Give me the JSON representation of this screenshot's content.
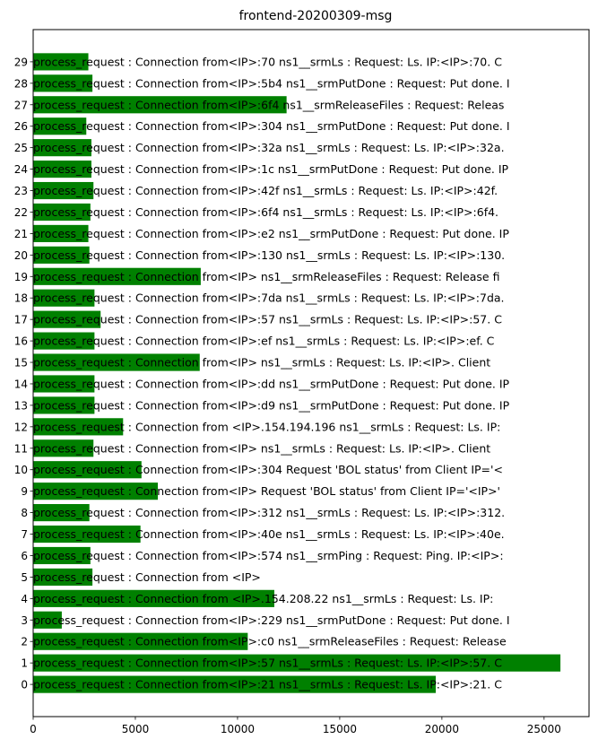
{
  "chart_data": {
    "type": "bar",
    "orientation": "horizontal",
    "title": "frontend-20200309-msg",
    "xlabel": "",
    "ylabel": "",
    "xlim": [
      0,
      27200
    ],
    "ylim": [
      -1.5,
      30.5
    ],
    "xticks": [
      0,
      5000,
      10000,
      15000,
      20000,
      25000
    ],
    "xtick_labels": [
      "0",
      "5000",
      "10000",
      "15000",
      "20000",
      "25000"
    ],
    "grid": false,
    "bar_color": "#008000",
    "categories": [
      "0",
      "1",
      "2",
      "3",
      "4",
      "5",
      "6",
      "7",
      "8",
      "9",
      "10",
      "11",
      "12",
      "13",
      "14",
      "15",
      "16",
      "17",
      "18",
      "19",
      "20",
      "21",
      "22",
      "23",
      "24",
      "25",
      "26",
      "27",
      "28",
      "29"
    ],
    "values": [
      19700,
      25800,
      10500,
      1400,
      11800,
      2900,
      2800,
      5250,
      2750,
      6100,
      5300,
      2950,
      4400,
      3000,
      3000,
      8150,
      3000,
      3300,
      3000,
      8200,
      2750,
      2700,
      2800,
      2950,
      2850,
      2850,
      2600,
      12400,
      2900,
      2700
    ],
    "labels": [
      "process_request : Connection from<IP>:21 ns1__srmLs : Request: Ls. IP:<IP>:21. C",
      "process_request : Connection from<IP>:57 ns1__srmLs : Request: Ls. IP:<IP>:57. C",
      "process_request : Connection from<IP>:c0 ns1__srmReleaseFiles : Request: Release",
      "process_request : Connection from<IP>:229 ns1__srmPutDone : Request: Put done. I",
      "process_request : Connection from <IP>.154.208.22 ns1__srmLs : Request: Ls. IP:",
      "process_request : Connection from <IP>",
      "process_request : Connection from<IP>:574 ns1__srmPing : Request: Ping. IP:<IP>:",
      "process_request : Connection from<IP>:40e ns1__srmLs : Request: Ls. IP:<IP>:40e.",
      "process_request : Connection from<IP>:312 ns1__srmLs : Request: Ls. IP:<IP>:312.",
      "process_request : Connection from<IP> Request 'BOL status' from Client IP='<IP>'",
      "process_request : Connection from<IP>:304 Request 'BOL status' from Client IP='<",
      "process_request : Connection from<IP> ns1__srmLs : Request: Ls. IP:<IP>. Client",
      "process_request : Connection from <IP>.154.194.196 ns1__srmLs : Request: Ls. IP:",
      "process_request : Connection from<IP>:d9 ns1__srmPutDone : Request: Put done. IP",
      "process_request : Connection from<IP>:dd ns1__srmPutDone : Request: Put done. IP",
      "process_request : Connection from<IP> ns1__srmLs : Request: Ls. IP:<IP>. Client",
      "process_request : Connection from<IP>:ef ns1__srmLs : Request: Ls. IP:<IP>:ef. C",
      "process_request : Connection from<IP>:57 ns1__srmLs : Request: Ls. IP:<IP>:57. C",
      "process_request : Connection from<IP>:7da ns1__srmLs : Request: Ls. IP:<IP>:7da.",
      "process_request : Connection from<IP> ns1__srmReleaseFiles : Request: Release fi",
      "process_request : Connection from<IP>:130 ns1__srmLs : Request: Ls. IP:<IP>:130.",
      "process_request : Connection from<IP>:e2 ns1__srmPutDone : Request: Put done. IP",
      "process_request : Connection from<IP>:6f4 ns1__srmLs : Request: Ls. IP:<IP>:6f4.",
      "process_request : Connection from<IP>:42f ns1__srmLs : Request: Ls. IP:<IP>:42f.",
      "process_request : Connection from<IP>:1c ns1__srmPutDone : Request: Put done. IP",
      "process_request : Connection from<IP>:32a ns1__srmLs : Request: Ls. IP:<IP>:32a.",
      "process_request : Connection from<IP>:304 ns1__srmPutDone : Request: Put done. I",
      "process_request : Connection from<IP>:6f4 ns1__srmReleaseFiles : Request: Releas",
      "process_request : Connection from<IP>:5b4 ns1__srmPutDone : Request: Put done. I",
      "process_request : Connection from<IP>:70 ns1__srmLs : Request: Ls. IP:<IP>:70. C"
    ]
  }
}
